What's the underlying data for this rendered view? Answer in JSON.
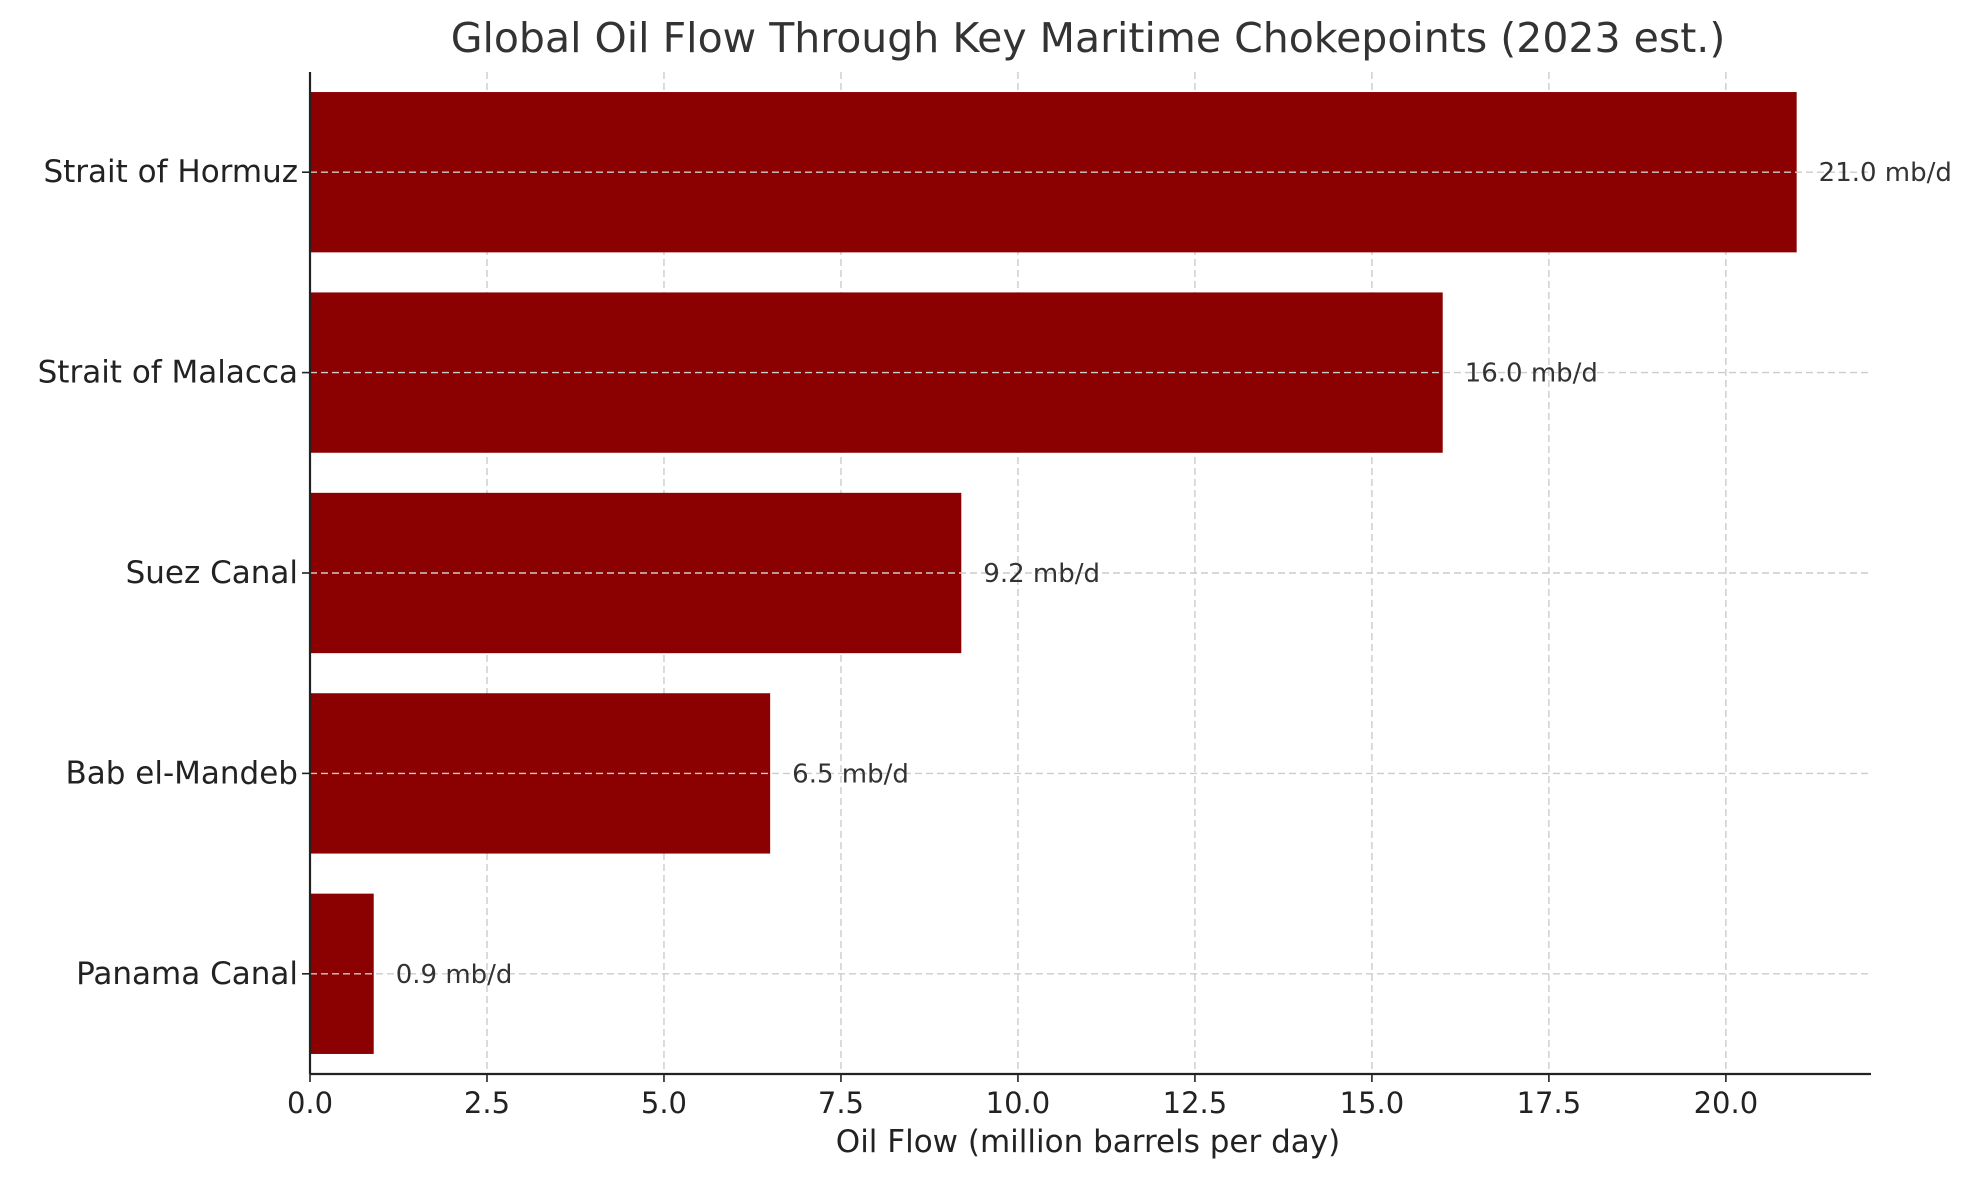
{
  "chart_data": {
    "type": "bar",
    "orientation": "horizontal",
    "title": "Global Oil Flow Through Key Maritime Chokepoints (2023 est.)",
    "xlabel": "Oil Flow (million barrels per day)",
    "ylabel": "",
    "categories": [
      "Strait of Hormuz",
      "Strait of Malacca",
      "Suez Canal",
      "Bab el-Mandeb",
      "Panama Canal"
    ],
    "values": [
      21.0,
      16.0,
      9.2,
      6.5,
      0.9
    ],
    "value_labels": [
      "21.0 mb/d",
      "16.0 mb/d",
      "9.2 mb/d",
      "6.5 mb/d",
      "0.9 mb/d"
    ],
    "xlim": [
      0,
      22.05
    ],
    "xticks": [
      0,
      2.5,
      5,
      7.5,
      10,
      12.5,
      15,
      17.5,
      20
    ],
    "xtick_labels": [
      "0.0",
      "2.5",
      "5.0",
      "7.5",
      "10.0",
      "12.5",
      "15.0",
      "17.5",
      "20.0"
    ],
    "grid": true,
    "bar_color": "#8b0000",
    "text_color": "#333333",
    "grid_color": "#cccccc"
  }
}
